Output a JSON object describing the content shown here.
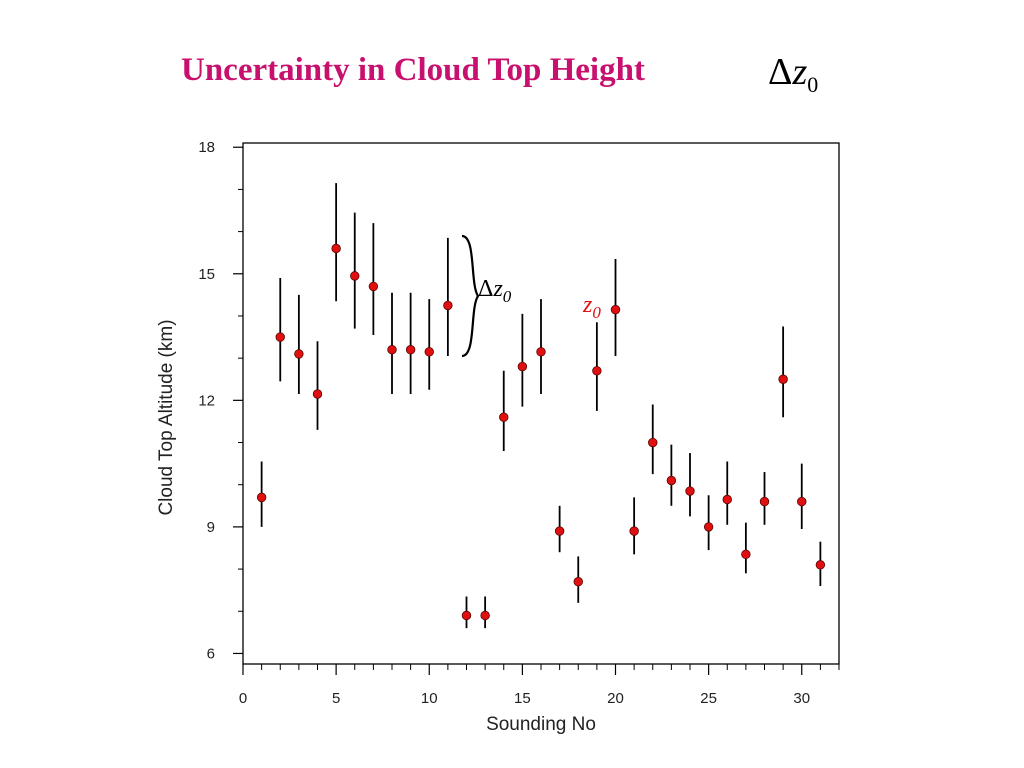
{
  "slide": {
    "title": "Uncertainty in Cloud Top Height",
    "title_symbol": {
      "delta": "Δ",
      "var": "z",
      "sub": "0"
    }
  },
  "colors": {
    "title": "#c8106e",
    "marker": "#e01010",
    "errorbar": "#000000",
    "annotation_red": "#e01010"
  },
  "chart_data": {
    "type": "scatter",
    "xlabel": "Sounding No",
    "ylabel": "Cloud Top Altitude (km)",
    "xlim": [
      0,
      32
    ],
    "ylim": [
      5.75,
      18.1
    ],
    "xticks": [
      0,
      5,
      10,
      15,
      20,
      25,
      30
    ],
    "yticks": [
      6,
      9,
      12,
      15,
      18
    ],
    "grid": false,
    "points": [
      {
        "x": 1,
        "y": 9.7,
        "lo": 9.0,
        "hi": 10.55
      },
      {
        "x": 2,
        "y": 13.5,
        "lo": 12.45,
        "hi": 14.9
      },
      {
        "x": 3,
        "y": 13.1,
        "lo": 12.15,
        "hi": 14.5
      },
      {
        "x": 4,
        "y": 12.15,
        "lo": 11.3,
        "hi": 13.4
      },
      {
        "x": 5,
        "y": 15.6,
        "lo": 14.35,
        "hi": 17.15
      },
      {
        "x": 6,
        "y": 14.95,
        "lo": 13.7,
        "hi": 16.45
      },
      {
        "x": 7,
        "y": 14.7,
        "lo": 13.55,
        "hi": 16.2
      },
      {
        "x": 8,
        "y": 13.2,
        "lo": 12.15,
        "hi": 14.55
      },
      {
        "x": 9,
        "y": 13.2,
        "lo": 12.15,
        "hi": 14.55
      },
      {
        "x": 10,
        "y": 13.15,
        "lo": 12.25,
        "hi": 14.4
      },
      {
        "x": 11,
        "y": 14.25,
        "lo": 13.05,
        "hi": 15.85
      },
      {
        "x": 12,
        "y": 6.9,
        "lo": 6.6,
        "hi": 7.35
      },
      {
        "x": 13,
        "y": 6.9,
        "lo": 6.6,
        "hi": 7.35
      },
      {
        "x": 14,
        "y": 11.6,
        "lo": 10.8,
        "hi": 12.7
      },
      {
        "x": 15,
        "y": 12.8,
        "lo": 11.85,
        "hi": 14.05
      },
      {
        "x": 16,
        "y": 13.15,
        "lo": 12.15,
        "hi": 14.4
      },
      {
        "x": 17,
        "y": 8.9,
        "lo": 8.4,
        "hi": 9.5
      },
      {
        "x": 18,
        "y": 7.7,
        "lo": 7.2,
        "hi": 8.3
      },
      {
        "x": 19,
        "y": 12.7,
        "lo": 11.75,
        "hi": 13.85
      },
      {
        "x": 20,
        "y": 14.15,
        "lo": 13.05,
        "hi": 15.35
      },
      {
        "x": 21,
        "y": 8.9,
        "lo": 8.35,
        "hi": 9.7
      },
      {
        "x": 22,
        "y": 11.0,
        "lo": 10.25,
        "hi": 11.9
      },
      {
        "x": 23,
        "y": 10.1,
        "lo": 9.5,
        "hi": 10.95
      },
      {
        "x": 24,
        "y": 9.85,
        "lo": 9.25,
        "hi": 10.75
      },
      {
        "x": 25,
        "y": 9.0,
        "lo": 8.45,
        "hi": 9.75
      },
      {
        "x": 26,
        "y": 9.65,
        "lo": 9.05,
        "hi": 10.55
      },
      {
        "x": 27,
        "y": 8.35,
        "lo": 7.9,
        "hi": 9.1
      },
      {
        "x": 28,
        "y": 9.6,
        "lo": 9.05,
        "hi": 10.3
      },
      {
        "x": 29,
        "y": 12.5,
        "lo": 11.6,
        "hi": 13.75
      },
      {
        "x": 30,
        "y": 9.6,
        "lo": 8.95,
        "hi": 10.5
      },
      {
        "x": 31,
        "y": 8.1,
        "lo": 7.6,
        "hi": 8.65
      }
    ],
    "annotations": {
      "brace_label": {
        "delta": "Δ",
        "var": "z",
        "sub": "0",
        "color": "#000000"
      },
      "point_label": {
        "var": "z",
        "sub": "0",
        "color": "#e01010"
      }
    }
  }
}
